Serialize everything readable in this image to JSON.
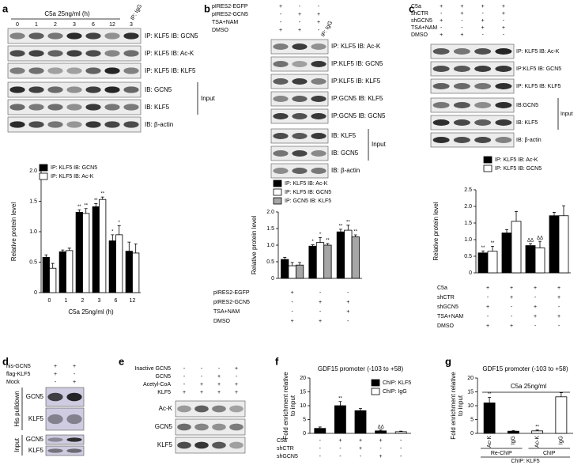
{
  "panels": {
    "a": {
      "label": "a",
      "treatment": "C5a 25ng/ml (h)",
      "lanes": [
        "0",
        "1",
        "2",
        "3",
        "6",
        "12",
        "3"
      ],
      "control": "IP: IgG",
      "blots": [
        "IP: KLF5 IB: GCN5",
        "IP: KLF5 IB: Ac-K",
        "IP: KLF5 IB: KLF5",
        "IB: GCN5",
        "IB: KLF5",
        "IB: β-actin"
      ],
      "group": "Input"
    },
    "b": {
      "label": "b",
      "conditions": [
        {
          "name": "pIRES2-EGFP",
          "marks": [
            "+",
            "-",
            "-"
          ]
        },
        {
          "name": "pIRES2-GCN5",
          "marks": [
            "-",
            "+",
            "+"
          ]
        },
        {
          "name": "TSA+NAM",
          "marks": [
            "-",
            "-",
            "+"
          ]
        },
        {
          "name": "DMSO",
          "marks": [
            "+",
            "+",
            "-"
          ]
        }
      ],
      "control": "IP: IgG",
      "blots": [
        "IP: KLF5 IB: Ac-K",
        "IP:KLF5 IB: GCN5",
        "IP:KLF5 IB: KLF5",
        "IP:GCN5 IB: KLF5",
        "IP:GCN5 IB: GCN5",
        "IB: KLF5",
        "IB: GCN5",
        "IB: β-actin"
      ],
      "group": "Input"
    },
    "c": {
      "label": "c",
      "conditions": [
        {
          "name": "C5a",
          "marks": [
            "+",
            "+",
            "+",
            "+"
          ]
        },
        {
          "name": "shCTR",
          "marks": [
            "-",
            "+",
            "-",
            "+"
          ]
        },
        {
          "name": "shGCN5",
          "marks": [
            "+",
            "-",
            "+",
            "-"
          ]
        },
        {
          "name": "TSA+NAM",
          "marks": [
            "-",
            "-",
            "+",
            "+"
          ]
        },
        {
          "name": "DMSO",
          "marks": [
            "+",
            "+",
            "-",
            "-"
          ]
        }
      ],
      "blots": [
        "IP: KLF5 IB: Ac-K",
        "IP:KLF5 IB: GCN5",
        "IP: KLF5 IB: KLF5",
        "IB:GCN5",
        "IB: KLF5",
        "IB: β-actin"
      ],
      "group": "Input"
    },
    "d": {
      "label": "d",
      "conditions": [
        {
          "name": "his-GCN5",
          "marks": [
            "+",
            "+"
          ]
        },
        {
          "name": "flag-KLF5",
          "marks": [
            "+",
            "-"
          ]
        },
        {
          "name": "Mock",
          "marks": [
            "-",
            "+"
          ]
        }
      ],
      "groups": [
        {
          "name": "His pulldown",
          "blots": [
            "GCN5",
            "KLF5"
          ]
        },
        {
          "name": "Input",
          "blots": [
            "GCN5",
            "KLF5"
          ]
        }
      ]
    },
    "e": {
      "label": "e",
      "conditions": [
        {
          "name": "Inactive GCN5",
          "marks": [
            "-",
            "-",
            "-",
            "+"
          ]
        },
        {
          "name": "GCN5",
          "marks": [
            "-",
            "-",
            "+",
            "-"
          ]
        },
        {
          "name": "Acetyl-CoA",
          "marks": [
            "-",
            "+",
            "+",
            "+"
          ]
        },
        {
          "name": "KLF5",
          "marks": [
            "+",
            "+",
            "+",
            "+"
          ]
        }
      ],
      "blots": [
        "Ac-K",
        "GCN5",
        "KLF5"
      ]
    },
    "f": {
      "label": "f"
    },
    "g": {
      "label": "g"
    }
  },
  "chart_data": [
    {
      "type": "bar",
      "categories": [
        "0",
        "1",
        "2",
        "3",
        "6",
        "12"
      ],
      "xlabel": "C5a 25ng/ml (h)",
      "ylabel": [
        "Relative protein level"
      ],
      "ylim": [
        0,
        2
      ],
      "yticks": [
        0,
        0.5,
        {
          "value": 1,
          "label": "1.0"
        },
        1.5,
        {
          "value": 2,
          "label": "2.0"
        }
      ],
      "series": [
        {
          "name": "IP: KLF5 IB: GCN5",
          "color": "#000000",
          "values": [
            0.58,
            0.67,
            1.32,
            1.41,
            0.85,
            0.68
          ],
          "errors": [
            0.04,
            0.03,
            0.04,
            0.05,
            0.1,
            0.15
          ],
          "significance": [
            null,
            null,
            "**",
            "**",
            "*",
            null
          ]
        },
        {
          "name": "IP: KLF5 IB: Ac-K",
          "color": "#ffffff",
          "values": [
            0.4,
            0.69,
            1.3,
            1.53,
            0.95,
            0.65
          ],
          "errors": [
            0.08,
            0.04,
            0.08,
            0.04,
            0.15,
            0.15
          ],
          "significance": [
            null,
            null,
            "**",
            "**",
            "*",
            null
          ]
        }
      ]
    },
    {
      "type": "bar",
      "ylabel": [
        "Relative protein level"
      ],
      "ylim": [
        0,
        2
      ],
      "yticks": [
        0,
        0.5,
        {
          "value": 1,
          "label": "1.0"
        },
        1.5,
        {
          "value": 2,
          "label": "2.0"
        }
      ],
      "conditions": [
        {
          "name": "pIRES2-EGFP",
          "marks": [
            "+",
            "-",
            "-"
          ]
        },
        {
          "name": "pIRES2-GCN5",
          "marks": [
            "-",
            "+",
            "+"
          ]
        },
        {
          "name": "TSA+NAM",
          "marks": [
            "-",
            "-",
            "+"
          ]
        },
        {
          "name": "DMSO",
          "marks": [
            "+",
            "+",
            "-"
          ]
        }
      ],
      "series": [
        {
          "name": "IP: KLF5 IB: Ac-K",
          "color": "#000000",
          "values": [
            0.57,
            0.97,
            1.4
          ],
          "errors": [
            0.06,
            0.04,
            0.08
          ],
          "significance": [
            null,
            "*",
            "**"
          ]
        },
        {
          "name": "IP: KLF5 IB: GCN5",
          "color": "#ffffff",
          "values": [
            0.38,
            1.08,
            1.45
          ],
          "errors": [
            0.1,
            0.15,
            0.15
          ],
          "significance": [
            null,
            "*",
            "**"
          ]
        },
        {
          "name": "IP: GCN5 IB: KLF5",
          "color": "#a6a6a6",
          "values": [
            0.4,
            1.0,
            1.25
          ],
          "errors": [
            0.08,
            0.05,
            0.06
          ],
          "significance": [
            null,
            "**",
            "**"
          ]
        }
      ]
    },
    {
      "type": "bar",
      "ylabel": [
        "Relative protein level"
      ],
      "ylim": [
        0,
        2.5
      ],
      "yticks": [
        0,
        0.5,
        {
          "value": 1,
          "label": "1.0"
        },
        1.5,
        {
          "value": 2,
          "label": "2.0"
        },
        2.5
      ],
      "conditions": [
        {
          "name": "C5a",
          "marks": [
            "+",
            "+",
            "+",
            "+"
          ]
        },
        {
          "name": "shCTR",
          "marks": [
            "-",
            "+",
            "-",
            "+"
          ]
        },
        {
          "name": "shGCN5",
          "marks": [
            "+",
            "-",
            "+",
            "-"
          ]
        },
        {
          "name": "TSA+NAM",
          "marks": [
            "-",
            "-",
            "+",
            "+"
          ]
        },
        {
          "name": "DMSO",
          "marks": [
            "+",
            "+",
            "-",
            "-"
          ]
        }
      ],
      "series": [
        {
          "name": "IP: KLF5 IB: Ac-K",
          "color": "#000000",
          "values": [
            0.6,
            1.2,
            0.82,
            1.72
          ],
          "errors": [
            0.06,
            0.1,
            0.06,
            0.1
          ],
          "significance": [
            "**",
            null,
            "ΔΔ",
            null
          ]
        },
        {
          "name": "IP: KLF5 IB: GCN5",
          "color": "#ffffff",
          "values": [
            0.65,
            1.55,
            0.75,
            1.72
          ],
          "errors": [
            0.15,
            0.3,
            0.2,
            0.3
          ],
          "significance": [
            "**",
            null,
            "ΔΔ",
            null
          ]
        }
      ]
    },
    {
      "type": "bar",
      "title": "GDF15 promoter (-103 to +58)",
      "ylabel": [
        "Fold enrichment relative",
        "to input"
      ],
      "ylim": [
        0,
        20
      ],
      "yticks": [
        0,
        5,
        10,
        15,
        20
      ],
      "conditions": [
        {
          "name": "C5a",
          "marks": [
            "-",
            "+",
            "+",
            "+",
            "-"
          ]
        },
        {
          "name": "shCTR",
          "marks": [
            "-",
            "-",
            "+",
            "-",
            "-"
          ]
        },
        {
          "name": "shGCN5",
          "marks": [
            "-",
            "-",
            "-",
            "+",
            "-"
          ]
        }
      ],
      "series": [
        {
          "name": "ChIP: KLF5",
          "color": "#000000",
          "values": [
            1.8,
            10,
            8.2,
            0.9,
            null
          ],
          "errors": [
            0.5,
            1.5,
            0.8,
            0.3,
            null
          ],
          "significance": [
            null,
            "**",
            null,
            "ΔΔ",
            null
          ]
        },
        {
          "name": "ChIP: IgG",
          "color": "#ffffff",
          "values": [
            null,
            null,
            null,
            null,
            0.6
          ],
          "errors": [
            null,
            null,
            null,
            null,
            0.2
          ],
          "significance": [
            null,
            null,
            null,
            null,
            null
          ]
        }
      ]
    },
    {
      "type": "bar",
      "title": "GDF15 promoter (-103 to +58)",
      "annotation": "C5a 25ng/ml",
      "ylabel": [
        "Fold enrichment relative",
        "to input"
      ],
      "ylim": [
        0,
        20
      ],
      "yticks": [
        0,
        5,
        10,
        15,
        20
      ],
      "categories": [
        "Ac-K",
        "IgG",
        "Ac-K",
        "IgG"
      ],
      "groups": [
        "Re-ChIP",
        "ChIP"
      ],
      "footer": "ChIP: KLF5",
      "series": [
        {
          "colors": [
            "#000000",
            "#000000",
            "#ffffff",
            "#ffffff"
          ],
          "values": [
            11,
            0.8,
            0.9,
            13.2
          ],
          "errors": [
            2,
            0.2,
            0.3,
            1.5
          ],
          "significance": [
            "**",
            null,
            "**",
            null
          ]
        }
      ]
    }
  ]
}
